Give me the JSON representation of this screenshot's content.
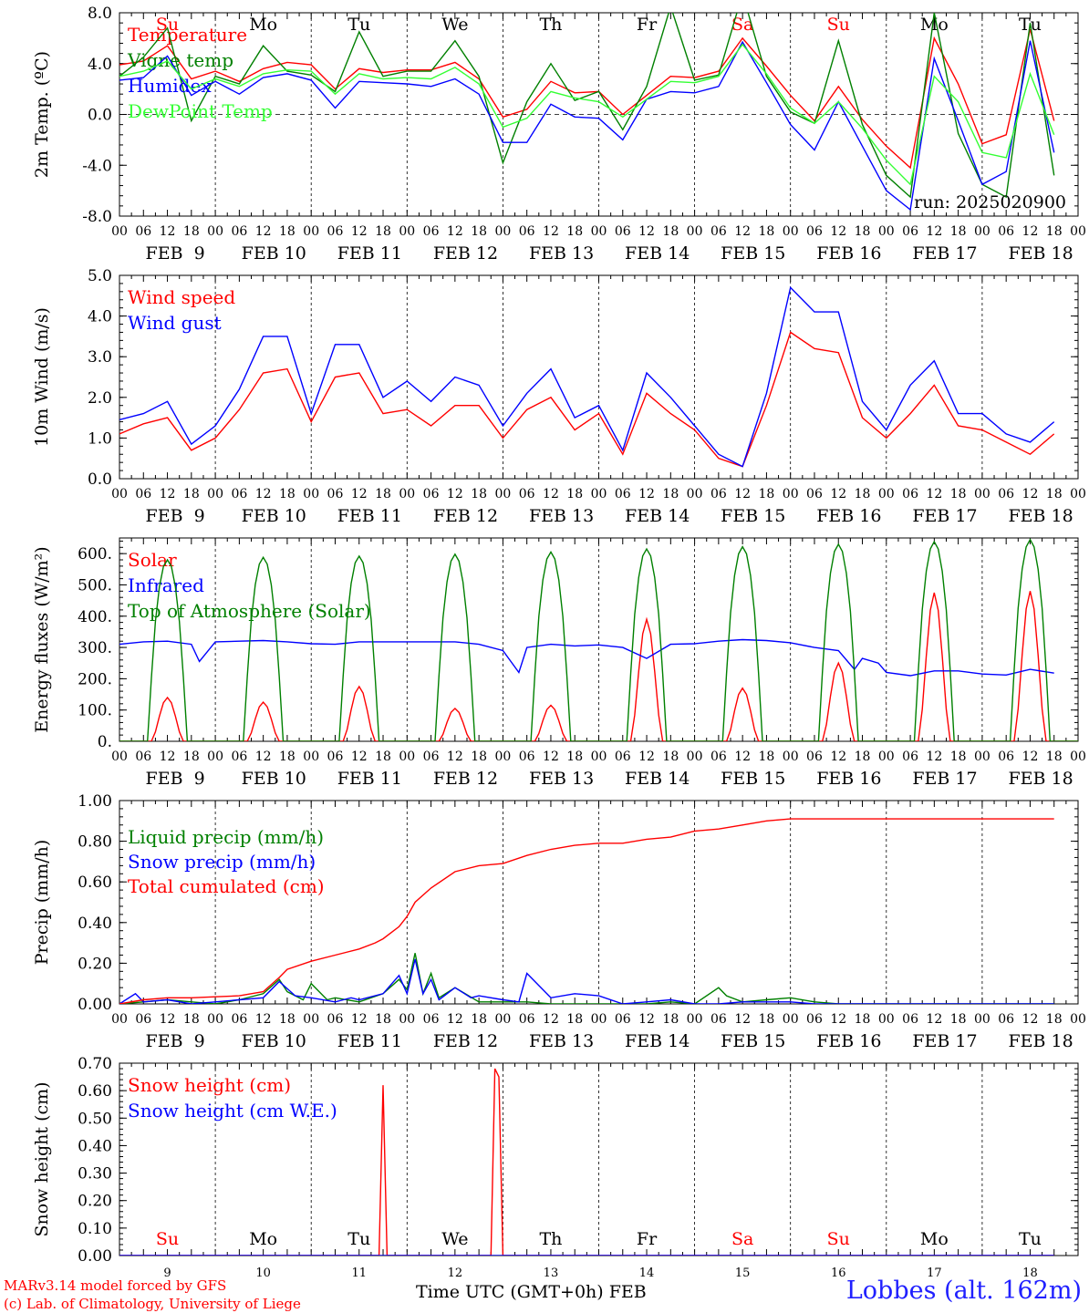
{
  "colors": {
    "red": "#ff0000",
    "darkgreen": "#008000",
    "blue": "#0000ff",
    "lightgreen": "#33ff33",
    "black": "#000000"
  },
  "time_axis": {
    "hour_ticks": [
      "00",
      "06",
      "12",
      "18"
    ],
    "date_labels": [
      "FEB  9",
      "FEB 10",
      "FEB 11",
      "FEB 12",
      "FEB 13",
      "FEB 14",
      "FEB 15",
      "FEB 16",
      "FEB 17",
      "FEB 18"
    ],
    "weekday_labels": [
      "Su",
      "Mo",
      "Tu",
      "We",
      "Th",
      "Fr",
      "Sa",
      "Su",
      "Mo",
      "Tu"
    ],
    "weekday_colors": [
      "#ff0000",
      "#000000",
      "#000000",
      "#000000",
      "#000000",
      "#000000",
      "#ff0000",
      "#ff0000",
      "#000000",
      "#000000"
    ],
    "day_numbers": [
      "9",
      "10",
      "11",
      "12",
      "13",
      "14",
      "15",
      "16",
      "17",
      "18"
    ]
  },
  "chart_data": [
    {
      "type": "line",
      "ylabel": "2m Temp. (ºC)",
      "ylim": [
        -8,
        8
      ],
      "yticks": [
        "-8.0",
        "-4.0",
        "0.0",
        "4.0",
        "8.0"
      ],
      "ytick_values": [
        -8,
        -4,
        0,
        4,
        8
      ],
      "legend": "top-left",
      "annotation": "run: 2025020900",
      "series": [
        {
          "name": "Temperature",
          "color": "#ff0000",
          "x": [
            0,
            6,
            12,
            18,
            24,
            30,
            36,
            42,
            48,
            54,
            60,
            66,
            72,
            78,
            84,
            90,
            96,
            102,
            108,
            114,
            120,
            126,
            132,
            138,
            144,
            150,
            156,
            162,
            168,
            174,
            180,
            186,
            192,
            198,
            204,
            210,
            216,
            222,
            228,
            234
          ],
          "y": [
            3.9,
            4.2,
            5.4,
            2.8,
            3.4,
            2.6,
            3.6,
            4.1,
            3.9,
            2.0,
            3.6,
            3.3,
            3.5,
            3.5,
            4.1,
            2.8,
            -0.2,
            0.4,
            2.6,
            1.7,
            1.8,
            0.0,
            1.5,
            3.0,
            2.9,
            3.4,
            6.0,
            3.8,
            1.5,
            -0.5,
            2.2,
            -0.4,
            -2.5,
            -4.2,
            6.0,
            2.4,
            -2.3,
            -1.6,
            6.7,
            -0.5
          ]
        },
        {
          "name": "Vigne temp",
          "color": "#008000",
          "x": [
            0,
            6,
            12,
            18,
            24,
            30,
            36,
            42,
            48,
            54,
            60,
            66,
            72,
            78,
            84,
            90,
            96,
            102,
            108,
            114,
            120,
            126,
            132,
            138,
            144,
            150,
            156,
            162,
            168,
            174,
            180,
            186,
            192,
            198,
            204,
            210,
            216,
            222,
            228,
            234
          ],
          "y": [
            3.0,
            4.5,
            6.8,
            -0.5,
            3.0,
            2.4,
            5.4,
            3.4,
            3.1,
            1.8,
            6.5,
            3.0,
            3.4,
            3.4,
            5.8,
            3.0,
            -3.8,
            1.0,
            4.0,
            1.1,
            1.8,
            -1.2,
            2.2,
            8.5,
            2.7,
            3.1,
            9.5,
            3.0,
            0.2,
            -0.7,
            5.8,
            -0.8,
            -4.8,
            -6.5,
            8.0,
            -1.5,
            -5.5,
            -6.5,
            7.2,
            -4.8
          ]
        },
        {
          "name": "Humidex",
          "color": "#0000ff",
          "x": [
            0,
            6,
            12,
            18,
            24,
            30,
            36,
            42,
            48,
            54,
            60,
            66,
            72,
            78,
            84,
            90,
            96,
            102,
            108,
            114,
            120,
            126,
            132,
            138,
            144,
            150,
            156,
            162,
            168,
            174,
            180,
            186,
            192,
            198,
            204,
            210,
            216,
            222,
            228,
            234
          ],
          "y": [
            2.7,
            2.9,
            4.6,
            1.5,
            2.6,
            1.6,
            2.9,
            3.2,
            2.7,
            0.5,
            2.6,
            2.5,
            2.4,
            2.2,
            2.8,
            1.6,
            -2.2,
            -2.2,
            0.8,
            -0.2,
            -0.3,
            -2.0,
            1.2,
            1.8,
            1.7,
            2.2,
            5.7,
            2.5,
            -0.8,
            -2.8,
            1.0,
            -2.5,
            -6.0,
            -7.5,
            4.4,
            -0.5,
            -5.5,
            -4.5,
            5.8,
            -3.0
          ]
        },
        {
          "name": "DewPoint Temp",
          "color": "#33ff33",
          "x": [
            0,
            6,
            12,
            18,
            24,
            30,
            36,
            42,
            48,
            54,
            60,
            66,
            72,
            78,
            84,
            90,
            96,
            102,
            108,
            114,
            120,
            126,
            132,
            138,
            144,
            150,
            156,
            162,
            168,
            174,
            180,
            186,
            192,
            198,
            204,
            210,
            216,
            222,
            228,
            234
          ],
          "y": [
            3.0,
            3.4,
            4.2,
            2.0,
            2.8,
            2.2,
            3.2,
            3.5,
            3.4,
            1.6,
            3.2,
            2.8,
            2.9,
            2.8,
            3.7,
            2.4,
            -1.0,
            -0.3,
            1.8,
            1.3,
            1.0,
            -0.2,
            1.2,
            2.6,
            2.5,
            3.0,
            5.5,
            3.2,
            0.5,
            -0.7,
            1.0,
            -1.1,
            -3.6,
            -5.5,
            3.0,
            1.0,
            -3.0,
            -3.4,
            3.2,
            -1.6
          ]
        }
      ]
    },
    {
      "type": "line",
      "ylabel": "10m Wind (m/s)",
      "ylim": [
        0,
        5
      ],
      "yticks": [
        "0.0",
        "1.0",
        "2.0",
        "3.0",
        "4.0",
        "5.0"
      ],
      "ytick_values": [
        0,
        1,
        2,
        3,
        4,
        5
      ],
      "legend": "top-left",
      "series": [
        {
          "name": "Wind speed",
          "color": "#ff0000",
          "x": [
            0,
            6,
            12,
            18,
            24,
            30,
            36,
            42,
            48,
            54,
            60,
            66,
            72,
            78,
            84,
            90,
            96,
            102,
            108,
            114,
            120,
            126,
            132,
            138,
            144,
            150,
            156,
            162,
            168,
            174,
            180,
            186,
            192,
            198,
            204,
            210,
            216,
            222,
            228,
            234
          ],
          "y": [
            1.1,
            1.35,
            1.5,
            0.7,
            1.0,
            1.7,
            2.6,
            2.7,
            1.4,
            2.5,
            2.6,
            1.6,
            1.7,
            1.3,
            1.8,
            1.8,
            1.0,
            1.7,
            2.0,
            1.2,
            1.6,
            0.6,
            2.1,
            1.6,
            1.2,
            0.5,
            0.3,
            1.8,
            3.6,
            3.2,
            3.1,
            1.5,
            1.0,
            1.6,
            2.3,
            1.3,
            1.2,
            0.9,
            0.6,
            1.1
          ]
        },
        {
          "name": "Wind gust",
          "color": "#0000ff",
          "x": [
            0,
            6,
            12,
            18,
            24,
            30,
            36,
            42,
            48,
            54,
            60,
            66,
            72,
            78,
            84,
            90,
            96,
            102,
            108,
            114,
            120,
            126,
            132,
            138,
            144,
            150,
            156,
            162,
            168,
            174,
            180,
            186,
            192,
            198,
            204,
            210,
            216,
            222,
            228,
            234
          ],
          "y": [
            1.45,
            1.6,
            1.9,
            0.85,
            1.3,
            2.2,
            3.5,
            3.5,
            1.6,
            3.3,
            3.3,
            2.0,
            2.4,
            1.9,
            2.5,
            2.3,
            1.3,
            2.1,
            2.7,
            1.5,
            1.8,
            0.7,
            2.6,
            2.0,
            1.3,
            0.6,
            0.3,
            2.1,
            4.7,
            4.1,
            4.1,
            1.9,
            1.2,
            2.3,
            2.9,
            1.6,
            1.6,
            1.1,
            0.9,
            1.4
          ]
        }
      ]
    },
    {
      "type": "line",
      "ylabel": "Energy fluxes (W/m²)",
      "ylim": [
        0,
        650
      ],
      "yticks": [
        "0.",
        "100.",
        "200.",
        "300.",
        "400.",
        "500.",
        "600."
      ],
      "ytick_values": [
        0,
        100,
        200,
        300,
        400,
        500,
        600
      ],
      "legend": "top-left",
      "series": [
        {
          "name": "Solar",
          "color": "#ff0000",
          "peaks": [
            140,
            125,
            175,
            105,
            115,
            390,
            170,
            250,
            475,
            480
          ]
        },
        {
          "name": "Infrared",
          "color": "#0000ff",
          "x": [
            0,
            6,
            12,
            18,
            20,
            24,
            30,
            36,
            42,
            48,
            54,
            60,
            66,
            72,
            78,
            84,
            90,
            96,
            100,
            102,
            108,
            114,
            120,
            126,
            132,
            138,
            144,
            150,
            156,
            162,
            168,
            174,
            180,
            184,
            186,
            190,
            192,
            198,
            204,
            210,
            216,
            222,
            228,
            234
          ],
          "y": [
            310,
            318,
            320,
            310,
            255,
            318,
            320,
            322,
            318,
            312,
            310,
            318,
            318,
            318,
            318,
            318,
            310,
            290,
            220,
            300,
            310,
            305,
            308,
            300,
            265,
            310,
            312,
            320,
            325,
            322,
            315,
            300,
            290,
            230,
            265,
            250,
            220,
            210,
            225,
            225,
            215,
            212,
            230,
            218
          ]
        },
        {
          "name": "Top of Atmosphere (Solar)",
          "color": "#008000",
          "peaks": [
            580,
            588,
            592,
            598,
            605,
            615,
            622,
            630,
            638,
            645
          ]
        }
      ]
    },
    {
      "type": "line",
      "ylabel": "Precip (mm/h)",
      "ylim": [
        0,
        1
      ],
      "yticks": [
        "0.00",
        "0.20",
        "0.40",
        "0.60",
        "0.80",
        "1.00"
      ],
      "ytick_values": [
        0,
        0.2,
        0.4,
        0.6,
        0.8,
        1.0
      ],
      "legend": "top-left",
      "series": [
        {
          "name": "Liquid precip (mm/h)",
          "color": "#008000",
          "x": [
            0,
            6,
            12,
            18,
            24,
            30,
            36,
            40,
            42,
            46,
            48,
            52,
            54,
            60,
            66,
            70,
            72,
            74,
            76,
            78,
            80,
            84,
            90,
            96,
            102,
            108,
            114,
            120,
            126,
            132,
            138,
            144,
            150,
            152,
            156,
            162,
            168,
            174,
            180,
            186,
            192,
            234
          ],
          "y": [
            0,
            0.01,
            0.02,
            0.01,
            0,
            0.02,
            0.05,
            0.12,
            0.06,
            0.02,
            0.1,
            0.02,
            0.03,
            0.01,
            0.05,
            0.12,
            0.07,
            0.25,
            0.05,
            0.15,
            0.03,
            0.08,
            0.01,
            0.01,
            0.01,
            0,
            0,
            0,
            0,
            0,
            0.01,
            0,
            0.08,
            0.04,
            0.01,
            0.02,
            0.03,
            0.01,
            0,
            0,
            0,
            0
          ]
        },
        {
          "name": "Snow precip (mm/h)",
          "color": "#0000ff",
          "x": [
            0,
            4,
            6,
            12,
            18,
            24,
            30,
            36,
            40,
            44,
            48,
            54,
            58,
            60,
            66,
            70,
            72,
            74,
            76,
            78,
            80,
            84,
            88,
            90,
            96,
            100,
            102,
            108,
            114,
            120,
            126,
            132,
            138,
            144,
            150,
            156,
            162,
            168,
            174,
            180,
            234
          ],
          "y": [
            0,
            0.05,
            0.01,
            0.02,
            0,
            0.01,
            0.02,
            0.03,
            0.11,
            0.04,
            0.03,
            0.01,
            0.03,
            0.02,
            0.05,
            0.14,
            0.05,
            0.22,
            0.05,
            0.12,
            0.02,
            0.08,
            0.03,
            0.04,
            0.02,
            0.01,
            0.15,
            0.03,
            0.05,
            0.04,
            0,
            0.01,
            0.02,
            0,
            0,
            0.01,
            0.01,
            0.01,
            0,
            0,
            0
          ]
        },
        {
          "name": "Total cumulated (cm)",
          "color": "#ff0000",
          "x": [
            0,
            6,
            12,
            18,
            24,
            30,
            36,
            40,
            42,
            48,
            54,
            60,
            64,
            66,
            70,
            72,
            74,
            78,
            84,
            90,
            96,
            102,
            108,
            114,
            120,
            126,
            132,
            138,
            144,
            150,
            156,
            162,
            168,
            174,
            180,
            186,
            192,
            234
          ],
          "y": [
            0,
            0.02,
            0.03,
            0.03,
            0.035,
            0.04,
            0.06,
            0.13,
            0.17,
            0.21,
            0.24,
            0.27,
            0.3,
            0.32,
            0.38,
            0.43,
            0.5,
            0.57,
            0.65,
            0.68,
            0.69,
            0.73,
            0.76,
            0.78,
            0.79,
            0.79,
            0.81,
            0.82,
            0.85,
            0.86,
            0.88,
            0.9,
            0.91,
            0.91,
            0.91,
            0.91,
            0.91,
            0.91
          ]
        }
      ]
    },
    {
      "type": "line",
      "ylabel": "Snow height (cm)",
      "ylim": [
        0,
        0.7
      ],
      "yticks": [
        "0.00",
        "0.10",
        "0.20",
        "0.30",
        "0.40",
        "0.50",
        "0.60",
        "0.70"
      ],
      "ytick_values": [
        0,
        0.1,
        0.2,
        0.3,
        0.4,
        0.5,
        0.6,
        0.7
      ],
      "legend": "top-left",
      "xlabel": "Time UTC (GMT+0h) FEB",
      "series": [
        {
          "name": "Snow height (cm)",
          "color": "#ff0000",
          "x": [
            0,
            65,
            66,
            67,
            93,
            94,
            95,
            96,
            234
          ],
          "y": [
            0,
            0,
            0.62,
            0,
            0,
            0.68,
            0.65,
            0,
            0
          ]
        },
        {
          "name": "Snow height (cm W.E.)",
          "color": "#0000ff",
          "x": [
            0,
            234
          ],
          "y": [
            0,
            0
          ]
        }
      ]
    }
  ],
  "footer": {
    "model_line": "MARv3.14 model forced by GFS",
    "lab_line": "(c) Lab. of Climatology, University of Liege",
    "xlabel": "Time UTC (GMT+0h) FEB",
    "station": "Lobbes (alt. 162m)"
  }
}
